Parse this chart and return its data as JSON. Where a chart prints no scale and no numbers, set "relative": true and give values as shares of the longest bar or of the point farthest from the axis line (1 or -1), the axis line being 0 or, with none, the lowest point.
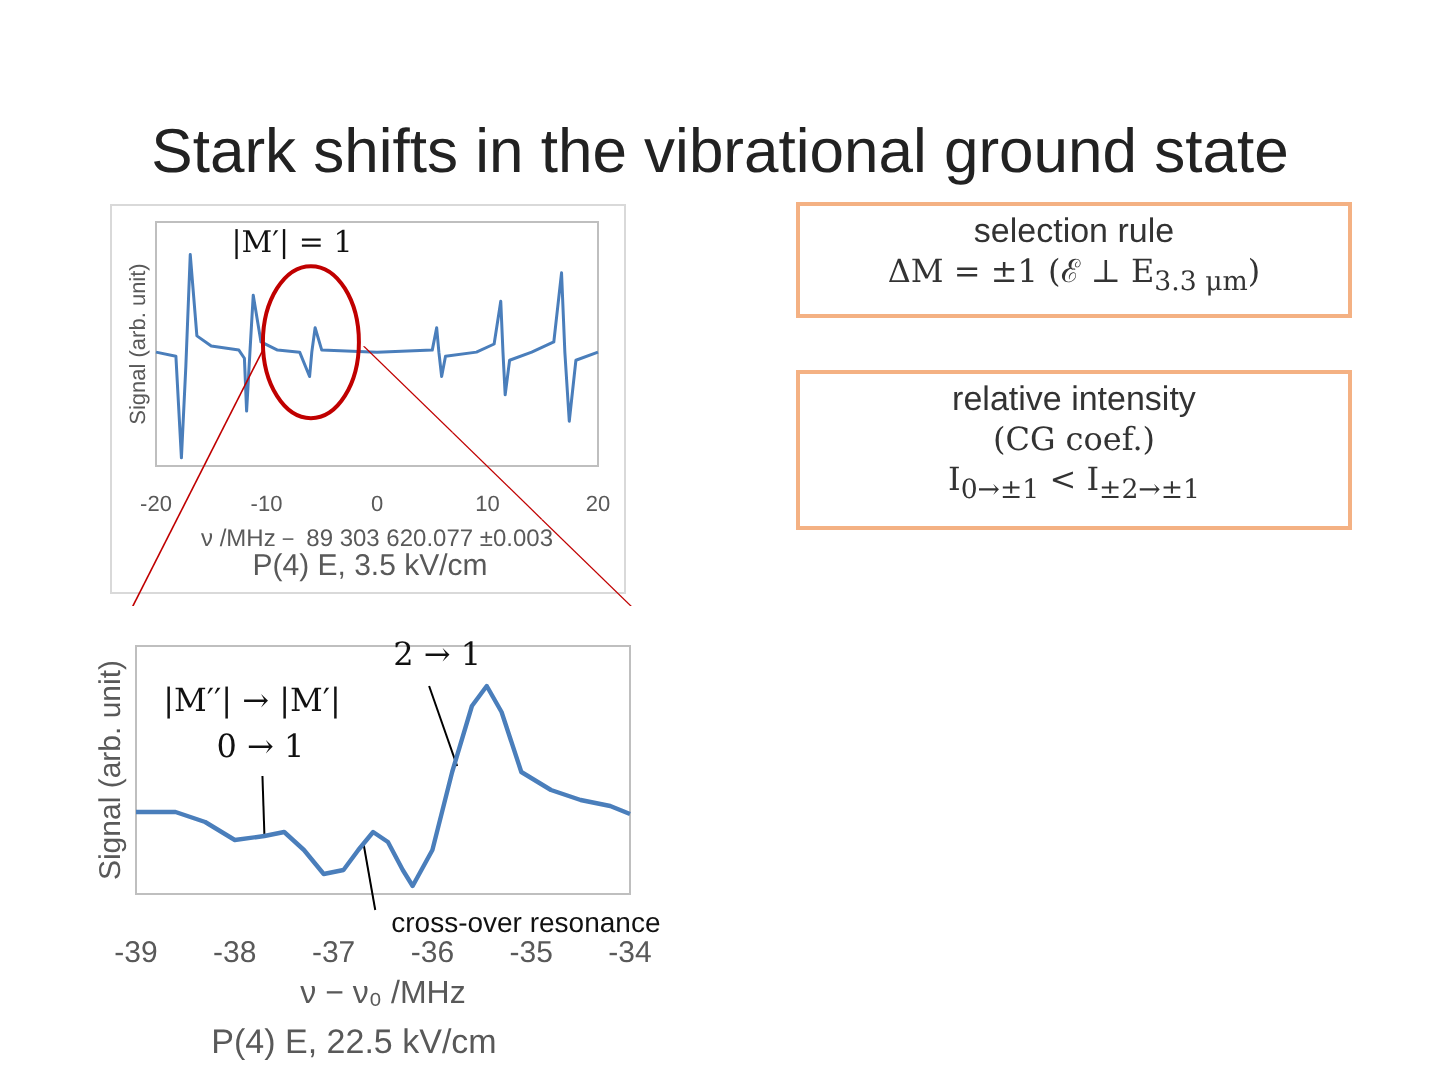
{
  "chart_data": [
    {
      "type": "line",
      "title": "Stark shifts in the vibrational ground state",
      "xlabel": "ν /MHz－ 89 303 620.077 ±0.003",
      "ylabel": "Signal (arb. unit)",
      "annotations": [
        "|M′| = 1",
        "P(4) E, 3.5 kV/cm"
      ],
      "relative": true,
      "marker": "none",
      "xlim": [
        -20,
        20
      ],
      "xticks": [
        -20,
        -10,
        0,
        10,
        20
      ],
      "x": [
        -20,
        -18.2,
        -17.7,
        -17.3,
        -16.9,
        -16.3,
        -15,
        -12.5,
        -12,
        -11.8,
        -11.5,
        -11.2,
        -10.5,
        -9,
        -7,
        -6.1,
        -5.9,
        -5.6,
        -5,
        0,
        5,
        5.4,
        5.6,
        5.85,
        6.2,
        9,
        10.6,
        11.2,
        11.4,
        11.6,
        12,
        14,
        16,
        16.7,
        17,
        17.4,
        18,
        20
      ],
      "series": [
        {
          "color": "#4a7ebb",
          "values": [
            0.52,
            0.5,
            0,
            0.45,
            1,
            0.6,
            0.55,
            0.53,
            0.49,
            0.23,
            0.52,
            0.8,
            0.57,
            0.53,
            0.52,
            0.4,
            0.52,
            0.64,
            0.53,
            0.52,
            0.53,
            0.64,
            0.52,
            0.4,
            0.5,
            0.52,
            0.56,
            0.77,
            0.52,
            0.31,
            0.48,
            0.52,
            0.57,
            0.91,
            0.52,
            0.18,
            0.48,
            0.52
          ]
        }
      ]
    },
    {
      "type": "line",
      "xlabel": "ν − ν₀ /MHz",
      "ylabel": "Signal (arb. unit)",
      "annotations": [
        "|M′′| → |M′|",
        {
          "text": "0 → 1",
          "x": -37.7,
          "y": 0.25
        },
        {
          "text": "2 → 1",
          "x": -35.75,
          "y": 0.6
        },
        {
          "text": "cross-over resonance",
          "x": -36.7,
          "y": 0.22
        },
        "P(4) E, 22.5 kV/cm"
      ],
      "relative": true,
      "marker": "none",
      "xlim": [
        -39,
        -34
      ],
      "xticks": [
        -39,
        -38,
        -37,
        -36,
        -35,
        -34
      ],
      "x": [
        -39,
        -38.6,
        -38.3,
        -38,
        -37.7,
        -37.5,
        -37.3,
        -37.1,
        -36.9,
        -36.75,
        -36.6,
        -36.45,
        -36.3,
        -36.2,
        -36,
        -35.8,
        -35.6,
        -35.45,
        -35.3,
        -35.1,
        -34.8,
        -34.5,
        -34.2,
        -34
      ],
      "series": [
        {
          "color": "#4a7ebb",
          "values": [
            0.37,
            0.37,
            0.32,
            0.23,
            0.25,
            0.27,
            0.18,
            0.06,
            0.08,
            0.18,
            0.27,
            0.22,
            0.08,
            0,
            0.18,
            0.57,
            0.9,
            1,
            0.87,
            0.57,
            0.48,
            0.43,
            0.4,
            0.36
          ]
        }
      ]
    },
    {
      "type": "other",
      "title": "selection rule",
      "annotations": [
        "ΔM = ±1 (ℰ ⊥ E$_{3.3 μm}$)"
      ]
    },
    {
      "type": "other",
      "title": "relative intensity",
      "annotations": [
        "(CG coef.)",
        "I$_{0→±1}$ < I$_{±2→±1}$"
      ]
    }
  ]
}
